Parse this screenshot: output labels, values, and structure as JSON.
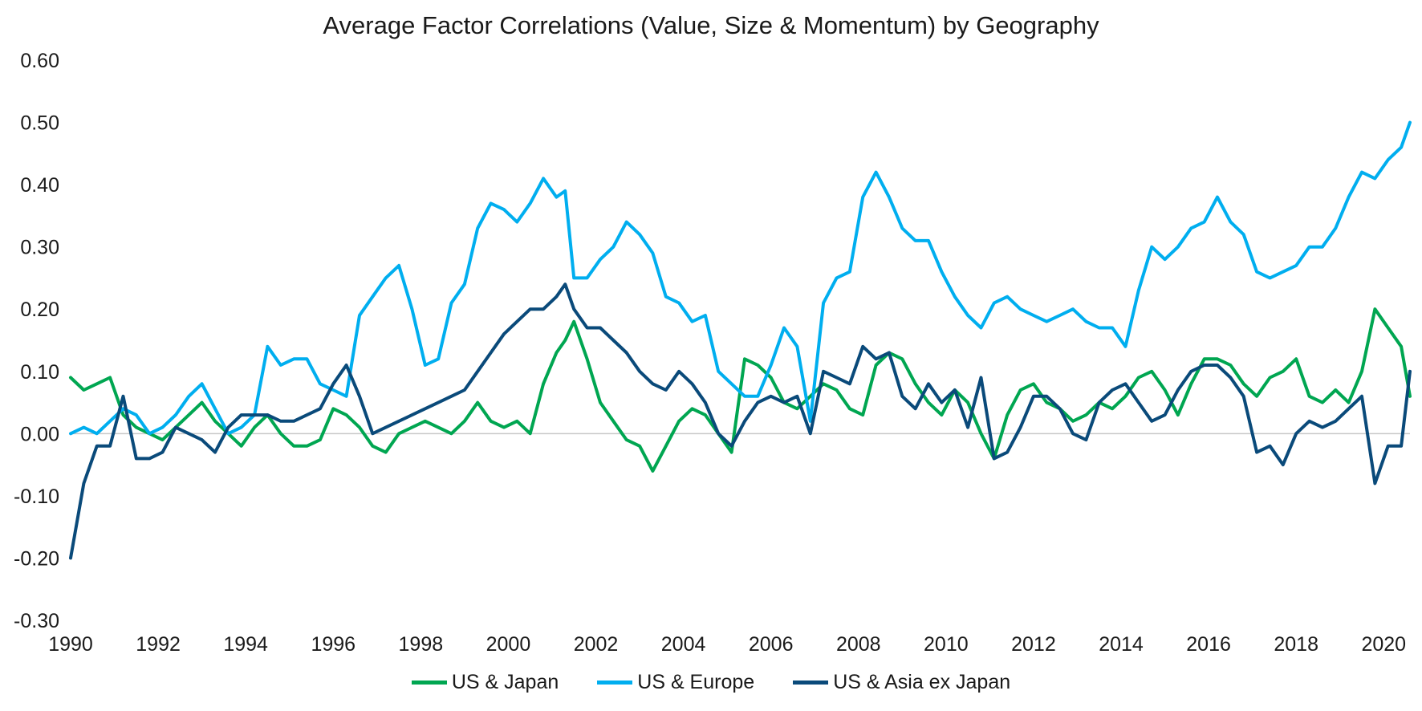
{
  "chart_data": {
    "type": "line",
    "title": "Average Factor Correlations (Value, Size & Momentum) by Geography",
    "xlabel": "",
    "ylabel": "",
    "xlim": [
      1990,
      2020.6
    ],
    "ylim": [
      -0.3,
      0.6
    ],
    "xticks": [
      1990,
      1992,
      1994,
      1996,
      1998,
      2000,
      2002,
      2004,
      2006,
      2008,
      2010,
      2012,
      2014,
      2016,
      2018,
      2020
    ],
    "xtick_labels": [
      "1990",
      "1992",
      "1994",
      "1996",
      "1998",
      "2000",
      "2002",
      "2004",
      "2006",
      "2008",
      "2010",
      "2012",
      "2014",
      "2016",
      "2018",
      "2020"
    ],
    "yticks": [
      -0.3,
      -0.2,
      -0.1,
      0.0,
      0.1,
      0.2,
      0.3,
      0.4,
      0.5,
      0.6
    ],
    "ytick_labels": [
      "-0.30",
      "-0.20",
      "-0.10",
      "0.00",
      "0.10",
      "0.20",
      "0.30",
      "0.40",
      "0.50",
      "0.60"
    ],
    "legend_position": "bottom",
    "series": [
      {
        "name": "US & Japan",
        "color": "#00A651",
        "x": [
          1990.0,
          1990.3,
          1990.6,
          1990.9,
          1991.2,
          1991.5,
          1991.8,
          1992.1,
          1992.4,
          1992.7,
          1993.0,
          1993.3,
          1993.6,
          1993.9,
          1994.2,
          1994.5,
          1994.8,
          1995.1,
          1995.4,
          1995.7,
          1996.0,
          1996.3,
          1996.6,
          1996.9,
          1997.2,
          1997.5,
          1997.8,
          1998.1,
          1998.4,
          1998.7,
          1999.0,
          1999.3,
          1999.6,
          1999.9,
          2000.2,
          2000.5,
          2000.8,
          2001.1,
          2001.3,
          2001.5,
          2001.8,
          2002.1,
          2002.4,
          2002.7,
          2003.0,
          2003.3,
          2003.6,
          2003.9,
          2004.2,
          2004.5,
          2004.8,
          2005.1,
          2005.4,
          2005.7,
          2006.0,
          2006.3,
          2006.6,
          2006.9,
          2007.2,
          2007.5,
          2007.8,
          2008.1,
          2008.4,
          2008.7,
          2009.0,
          2009.3,
          2009.6,
          2009.9,
          2010.2,
          2010.5,
          2010.8,
          2011.1,
          2011.4,
          2011.7,
          2012.0,
          2012.3,
          2012.6,
          2012.9,
          2013.2,
          2013.5,
          2013.8,
          2014.1,
          2014.4,
          2014.7,
          2015.0,
          2015.3,
          2015.6,
          2015.9,
          2016.2,
          2016.5,
          2016.8,
          2017.1,
          2017.4,
          2017.7,
          2018.0,
          2018.3,
          2018.6,
          2018.9,
          2019.2,
          2019.5,
          2019.8,
          2020.1,
          2020.4,
          2020.6
        ],
        "values": [
          0.09,
          0.07,
          0.08,
          0.09,
          0.03,
          0.01,
          0.0,
          -0.01,
          0.01,
          0.03,
          0.05,
          0.02,
          0.0,
          -0.02,
          0.01,
          0.03,
          0.0,
          -0.02,
          -0.02,
          -0.01,
          0.04,
          0.03,
          0.01,
          -0.02,
          -0.03,
          0.0,
          0.01,
          0.02,
          0.01,
          0.0,
          0.02,
          0.05,
          0.02,
          0.01,
          0.02,
          0.0,
          0.08,
          0.13,
          0.15,
          0.18,
          0.12,
          0.05,
          0.02,
          -0.01,
          -0.02,
          -0.06,
          -0.02,
          0.02,
          0.04,
          0.03,
          0.0,
          -0.03,
          0.12,
          0.11,
          0.09,
          0.05,
          0.04,
          0.06,
          0.08,
          0.07,
          0.04,
          0.03,
          0.11,
          0.13,
          0.12,
          0.08,
          0.05,
          0.03,
          0.07,
          0.05,
          0.0,
          -0.04,
          0.03,
          0.07,
          0.08,
          0.05,
          0.04,
          0.02,
          0.03,
          0.05,
          0.04,
          0.06,
          0.09,
          0.1,
          0.07,
          0.03,
          0.08,
          0.12,
          0.12,
          0.11,
          0.08,
          0.06,
          0.09,
          0.1,
          0.12,
          0.06,
          0.05,
          0.07,
          0.05,
          0.1,
          0.2,
          0.17,
          0.14,
          0.06
        ]
      },
      {
        "name": "US & Europe",
        "color": "#00AEEF",
        "x": [
          1990.0,
          1990.3,
          1990.6,
          1990.9,
          1991.2,
          1991.5,
          1991.8,
          1992.1,
          1992.4,
          1992.7,
          1993.0,
          1993.3,
          1993.6,
          1993.9,
          1994.2,
          1994.5,
          1994.8,
          1995.1,
          1995.4,
          1995.7,
          1996.0,
          1996.3,
          1996.6,
          1996.9,
          1997.2,
          1997.5,
          1997.8,
          1998.1,
          1998.4,
          1998.7,
          1999.0,
          1999.3,
          1999.6,
          1999.9,
          2000.2,
          2000.5,
          2000.8,
          2001.1,
          2001.3,
          2001.5,
          2001.8,
          2002.1,
          2002.4,
          2002.7,
          2003.0,
          2003.3,
          2003.6,
          2003.9,
          2004.2,
          2004.5,
          2004.8,
          2005.1,
          2005.4,
          2005.7,
          2006.0,
          2006.3,
          2006.6,
          2006.9,
          2007.2,
          2007.5,
          2007.8,
          2008.1,
          2008.4,
          2008.7,
          2009.0,
          2009.3,
          2009.6,
          2009.9,
          2010.2,
          2010.5,
          2010.8,
          2011.1,
          2011.4,
          2011.7,
          2012.0,
          2012.3,
          2012.6,
          2012.9,
          2013.2,
          2013.5,
          2013.8,
          2014.1,
          2014.4,
          2014.7,
          2015.0,
          2015.3,
          2015.6,
          2015.9,
          2016.2,
          2016.5,
          2016.8,
          2017.1,
          2017.4,
          2017.7,
          2018.0,
          2018.3,
          2018.6,
          2018.9,
          2019.2,
          2019.5,
          2019.8,
          2020.1,
          2020.4,
          2020.6
        ],
        "values": [
          0.0,
          0.01,
          0.0,
          0.02,
          0.04,
          0.03,
          0.0,
          0.01,
          0.03,
          0.06,
          0.08,
          0.04,
          0.0,
          0.01,
          0.03,
          0.14,
          0.11,
          0.12,
          0.12,
          0.08,
          0.07,
          0.06,
          0.19,
          0.22,
          0.25,
          0.27,
          0.2,
          0.11,
          0.12,
          0.21,
          0.24,
          0.33,
          0.37,
          0.36,
          0.34,
          0.37,
          0.41,
          0.38,
          0.39,
          0.25,
          0.25,
          0.28,
          0.3,
          0.34,
          0.32,
          0.29,
          0.22,
          0.21,
          0.18,
          0.19,
          0.1,
          0.08,
          0.06,
          0.06,
          0.11,
          0.17,
          0.14,
          0.02,
          0.21,
          0.25,
          0.26,
          0.38,
          0.42,
          0.38,
          0.33,
          0.31,
          0.31,
          0.26,
          0.22,
          0.19,
          0.17,
          0.21,
          0.22,
          0.2,
          0.19,
          0.18,
          0.19,
          0.2,
          0.18,
          0.17,
          0.17,
          0.14,
          0.23,
          0.3,
          0.28,
          0.3,
          0.33,
          0.34,
          0.38,
          0.34,
          0.32,
          0.26,
          0.25,
          0.26,
          0.27,
          0.3,
          0.3,
          0.33,
          0.38,
          0.42,
          0.41,
          0.44,
          0.46,
          0.5
        ]
      },
      {
        "name": "US & Asia ex Japan",
        "color": "#0A4A7A",
        "x": [
          1990.0,
          1990.3,
          1990.6,
          1990.9,
          1991.2,
          1991.5,
          1991.8,
          1992.1,
          1992.4,
          1992.7,
          1993.0,
          1993.3,
          1993.6,
          1993.9,
          1994.2,
          1994.5,
          1994.8,
          1995.1,
          1995.4,
          1995.7,
          1996.0,
          1996.3,
          1996.6,
          1996.9,
          1997.2,
          1997.5,
          1997.8,
          1998.1,
          1998.4,
          1998.7,
          1999.0,
          1999.3,
          1999.6,
          1999.9,
          2000.2,
          2000.5,
          2000.8,
          2001.1,
          2001.3,
          2001.5,
          2001.8,
          2002.1,
          2002.4,
          2002.7,
          2003.0,
          2003.3,
          2003.6,
          2003.9,
          2004.2,
          2004.5,
          2004.8,
          2005.1,
          2005.4,
          2005.7,
          2006.0,
          2006.3,
          2006.6,
          2006.9,
          2007.2,
          2007.5,
          2007.8,
          2008.1,
          2008.4,
          2008.7,
          2009.0,
          2009.3,
          2009.6,
          2009.9,
          2010.2,
          2010.5,
          2010.8,
          2011.1,
          2011.4,
          2011.7,
          2012.0,
          2012.3,
          2012.6,
          2012.9,
          2013.2,
          2013.5,
          2013.8,
          2014.1,
          2014.4,
          2014.7,
          2015.0,
          2015.3,
          2015.6,
          2015.9,
          2016.2,
          2016.5,
          2016.8,
          2017.1,
          2017.4,
          2017.7,
          2018.0,
          2018.3,
          2018.6,
          2018.9,
          2019.2,
          2019.5,
          2019.8,
          2020.1,
          2020.4,
          2020.6
        ],
        "values": [
          -0.2,
          -0.08,
          -0.02,
          -0.02,
          0.06,
          -0.04,
          -0.04,
          -0.03,
          0.01,
          0.0,
          -0.01,
          -0.03,
          0.01,
          0.03,
          0.03,
          0.03,
          0.02,
          0.02,
          0.03,
          0.04,
          0.08,
          0.11,
          0.06,
          0.0,
          0.01,
          0.02,
          0.03,
          0.04,
          0.05,
          0.06,
          0.07,
          0.1,
          0.13,
          0.16,
          0.18,
          0.2,
          0.2,
          0.22,
          0.24,
          0.2,
          0.17,
          0.17,
          0.15,
          0.13,
          0.1,
          0.08,
          0.07,
          0.1,
          0.08,
          0.05,
          0.0,
          -0.02,
          0.02,
          0.05,
          0.06,
          0.05,
          0.06,
          0.0,
          0.1,
          0.09,
          0.08,
          0.14,
          0.12,
          0.13,
          0.06,
          0.04,
          0.08,
          0.05,
          0.07,
          0.01,
          0.09,
          -0.04,
          -0.03,
          0.01,
          0.06,
          0.06,
          0.04,
          0.0,
          -0.01,
          0.05,
          0.07,
          0.08,
          0.05,
          0.02,
          0.03,
          0.07,
          0.1,
          0.11,
          0.11,
          0.09,
          0.06,
          -0.03,
          -0.02,
          -0.05,
          0.0,
          0.02,
          0.01,
          0.02,
          0.04,
          0.06,
          -0.08,
          -0.02,
          -0.02,
          0.1
        ]
      }
    ]
  }
}
